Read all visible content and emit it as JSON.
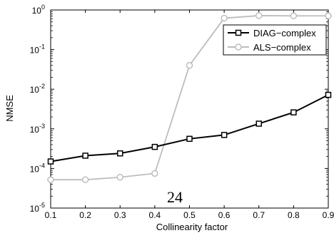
{
  "chart_data": {
    "type": "line",
    "title": "",
    "xlabel": "Collinearity factor",
    "ylabel": "NMSE",
    "x": [
      0.1,
      0.2,
      0.3,
      0.4,
      0.5,
      0.6,
      0.7,
      0.8,
      0.9
    ],
    "xlim": [
      0.1,
      0.9
    ],
    "ylim": [
      1e-05,
      1
    ],
    "yscale": "log",
    "x_tick_labels": [
      "0.1",
      "0.2",
      "0.3",
      "0.4",
      "0.5",
      "0.6",
      "0.7",
      "0.8",
      "0.9"
    ],
    "y_ticks": [
      {
        "base": "10",
        "exp": "0"
      },
      {
        "base": "10",
        "exp": "-1"
      },
      {
        "base": "10",
        "exp": "-2"
      },
      {
        "base": "10",
        "exp": "-3"
      },
      {
        "base": "10",
        "exp": "-4"
      },
      {
        "base": "10",
        "exp": "-5"
      }
    ],
    "grid": false,
    "legend_position": "top-right",
    "series": [
      {
        "name": "DIAG−complex",
        "color": "#000000",
        "marker": "square",
        "values": [
          0.00015,
          0.00021,
          0.00024,
          0.00035,
          0.00056,
          0.0007,
          0.00135,
          0.0026,
          0.0072
        ]
      },
      {
        "name": "ALS−complex",
        "color": "#bdbdbd",
        "marker": "circle",
        "values": [
          5.2e-05,
          5.2e-05,
          6e-05,
          7.5e-05,
          0.04,
          0.62,
          0.72,
          0.71,
          0.71
        ]
      }
    ]
  },
  "page_number": "24"
}
